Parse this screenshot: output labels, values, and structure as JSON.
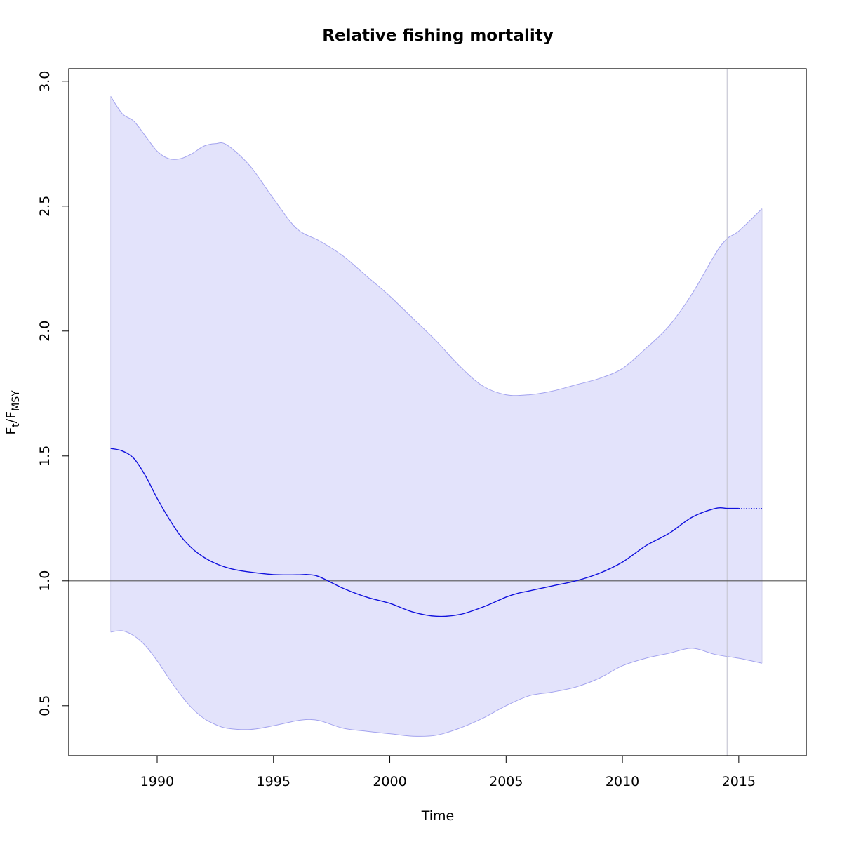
{
  "chart_data": {
    "type": "area",
    "title": "Relative fishing mortality",
    "xlabel": "Time",
    "ylabel": {
      "main": "F",
      "sub1": "t",
      "sep": "/F",
      "sub2": "MSY"
    },
    "xlim": [
      1986.2,
      2017.9
    ],
    "ylim": [
      0.3,
      3.05
    ],
    "x_ticks": [
      1990,
      1995,
      2000,
      2005,
      2010,
      2015
    ],
    "x_tick_labels": [
      "1990",
      "1995",
      "2000",
      "2005",
      "2010",
      "2015"
    ],
    "y_ticks": [
      0.5,
      1.0,
      1.5,
      2.0,
      2.5,
      3.0
    ],
    "y_tick_labels": [
      "0.5",
      "1.0",
      "1.5",
      "2.0",
      "2.5",
      "3.0"
    ],
    "grid": false,
    "reference_line_y": 1.0,
    "vertical_line_x": 2014.5,
    "series": [
      {
        "role": "estimate",
        "x": [
          1988,
          1988.5,
          1989,
          1989.5,
          1990,
          1990.5,
          1991,
          1991.5,
          1992,
          1992.5,
          1993,
          1993.5,
          1994,
          1995,
          1996,
          1996.5,
          1997,
          1998,
          1999,
          2000,
          2001,
          2002,
          2003,
          2004,
          2005,
          2005.5,
          2006,
          2007,
          2008,
          2009,
          2010,
          2011,
          2012,
          2013,
          2014,
          2014.5,
          2015
        ],
        "values": [
          1.53,
          1.52,
          1.49,
          1.42,
          1.33,
          1.25,
          1.18,
          1.13,
          1.095,
          1.07,
          1.053,
          1.042,
          1.035,
          1.025,
          1.024,
          1.025,
          1.015,
          0.97,
          0.935,
          0.91,
          0.875,
          0.858,
          0.865,
          0.895,
          0.935,
          0.95,
          0.96,
          0.98,
          1.0,
          1.03,
          1.075,
          1.14,
          1.19,
          1.255,
          1.29,
          1.29,
          1.29
        ]
      },
      {
        "role": "forecast",
        "x": [
          2015,
          2016
        ],
        "values": [
          1.29,
          1.29
        ]
      },
      {
        "role": "upper_ci",
        "x": [
          1988,
          1988.5,
          1989,
          1989.5,
          1990,
          1990.5,
          1991,
          1991.5,
          1992,
          1992.5,
          1993,
          1994,
          1995,
          1996,
          1997,
          1998,
          1999,
          2000,
          2001,
          2002,
          2003,
          2004,
          2005,
          2006,
          2007,
          2008,
          2009,
          2010,
          2011,
          2012,
          2013,
          2014,
          2014.5,
          2015,
          2016
        ],
        "values": [
          2.94,
          2.87,
          2.84,
          2.78,
          2.72,
          2.69,
          2.69,
          2.71,
          2.74,
          2.75,
          2.745,
          2.66,
          2.53,
          2.41,
          2.36,
          2.3,
          2.22,
          2.14,
          2.05,
          1.96,
          1.86,
          1.78,
          1.745,
          1.745,
          1.76,
          1.785,
          1.81,
          1.85,
          1.93,
          2.02,
          2.15,
          2.31,
          2.37,
          2.4,
          2.49
        ]
      },
      {
        "role": "lower_ci",
        "x": [
          1988,
          1988.5,
          1989,
          1989.5,
          1990,
          1990.5,
          1991,
          1991.5,
          1992,
          1992.5,
          1993,
          1994,
          1995,
          1996,
          1996.5,
          1997,
          1998,
          1999,
          2000,
          2001,
          2002,
          2003,
          2004,
          2005,
          2006,
          2007,
          2008,
          2009,
          2010,
          2011,
          2012,
          2013,
          2014,
          2015,
          2016
        ],
        "values": [
          0.795,
          0.8,
          0.78,
          0.74,
          0.68,
          0.61,
          0.545,
          0.49,
          0.45,
          0.425,
          0.41,
          0.405,
          0.42,
          0.44,
          0.445,
          0.44,
          0.41,
          0.398,
          0.388,
          0.378,
          0.382,
          0.41,
          0.45,
          0.5,
          0.54,
          0.555,
          0.575,
          0.61,
          0.66,
          0.69,
          0.71,
          0.73,
          0.705,
          0.69,
          0.67
        ]
      }
    ],
    "colors": {
      "band_fill": "#e3e3fb",
      "band_edge": "#a3a3ee",
      "estimate": "#1111dd",
      "reference": "#555555",
      "vline": "#c8c8d4",
      "frame": "#000000"
    }
  }
}
